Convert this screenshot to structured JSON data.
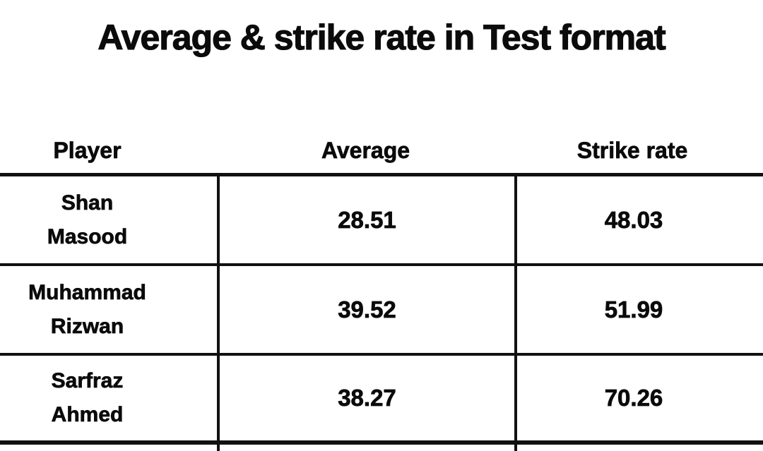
{
  "title": "Average & strike rate in Test format",
  "table": {
    "columns": [
      "Player",
      "Average",
      "Strike rate"
    ],
    "rows": [
      {
        "player": [
          "Shan",
          "Masood"
        ],
        "average": "28.51",
        "strike_rate": "48.03"
      },
      {
        "player": [
          "Muhammad",
          "Rizwan"
        ],
        "average": "39.52",
        "strike_rate": "51.99"
      },
      {
        "player": [
          "Sarfraz",
          "Ahmed"
        ],
        "average": "38.27",
        "strike_rate": "70.26"
      }
    ]
  },
  "chart_data": {
    "type": "table",
    "title": "Average & strike rate in Test format",
    "columns": [
      "Player",
      "Average",
      "Strike rate"
    ],
    "rows": [
      [
        "Shan Masood",
        28.51,
        48.03
      ],
      [
        "Muhammad Rizwan",
        39.52,
        51.99
      ],
      [
        "Sarfraz Ahmed",
        38.27,
        70.26
      ]
    ]
  },
  "colors": {
    "text": "#0b0b0b",
    "border": "#111111",
    "background": "#ffffff"
  }
}
